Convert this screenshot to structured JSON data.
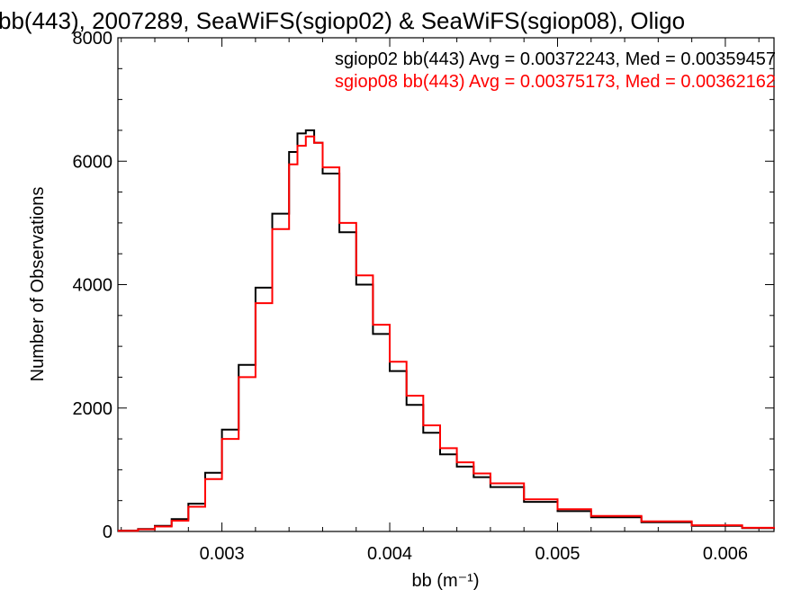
{
  "chart_data": {
    "type": "line",
    "title": "bb(443), 2007289, SeaWiFS(sgiop02) & SeaWiFS(sgiop08), Oligo",
    "xlabel": "bb (m⁻¹)",
    "ylabel": "Number of Observations",
    "xlim": [
      0.00238,
      0.00629
    ],
    "ylim": [
      0,
      8000
    ],
    "x_ticks": [
      "0.003",
      "0.004",
      "0.005",
      "0.006"
    ],
    "y_ticks": [
      "0",
      "2000",
      "4000",
      "6000",
      "8000"
    ],
    "legend_placement": "top-right",
    "series": [
      {
        "name": "sgiop02",
        "color": "#000000",
        "annotation": "sgiop02 bb(443) Avg = 0.00372243, Med = 0.00359457",
        "x": [
          0.00238,
          0.0025,
          0.0026,
          0.0027,
          0.0028,
          0.0029,
          0.003,
          0.0031,
          0.0032,
          0.0033,
          0.0034,
          0.00345,
          0.0035,
          0.00355,
          0.0036,
          0.0037,
          0.0038,
          0.0039,
          0.004,
          0.0041,
          0.0042,
          0.0043,
          0.0044,
          0.0045,
          0.0046,
          0.0048,
          0.005,
          0.0052,
          0.0055,
          0.0058,
          0.0061,
          0.00629
        ],
        "values": [
          15,
          40,
          90,
          200,
          450,
          950,
          1650,
          2700,
          3950,
          5150,
          6150,
          6450,
          6500,
          6300,
          5800,
          4850,
          4000,
          3200,
          2600,
          2050,
          1600,
          1250,
          1050,
          880,
          720,
          480,
          330,
          230,
          150,
          90,
          55,
          40
        ]
      },
      {
        "name": "sgiop08",
        "color": "#ff0000",
        "annotation": "sgiop08 bb(443) Avg = 0.00375173, Med = 0.00362162",
        "x": [
          0.00238,
          0.0025,
          0.0026,
          0.0027,
          0.0028,
          0.0029,
          0.003,
          0.0031,
          0.0032,
          0.0033,
          0.0034,
          0.00345,
          0.0035,
          0.00355,
          0.0036,
          0.0037,
          0.0038,
          0.0039,
          0.004,
          0.0041,
          0.0042,
          0.0043,
          0.0044,
          0.0045,
          0.0046,
          0.0048,
          0.005,
          0.0052,
          0.0055,
          0.0058,
          0.0061,
          0.00629
        ],
        "values": [
          12,
          35,
          80,
          175,
          400,
          850,
          1500,
          2500,
          3700,
          4900,
          5950,
          6250,
          6400,
          6300,
          5900,
          5000,
          4150,
          3350,
          2750,
          2200,
          1720,
          1350,
          1120,
          940,
          780,
          520,
          360,
          250,
          165,
          100,
          60,
          45
        ]
      }
    ]
  }
}
